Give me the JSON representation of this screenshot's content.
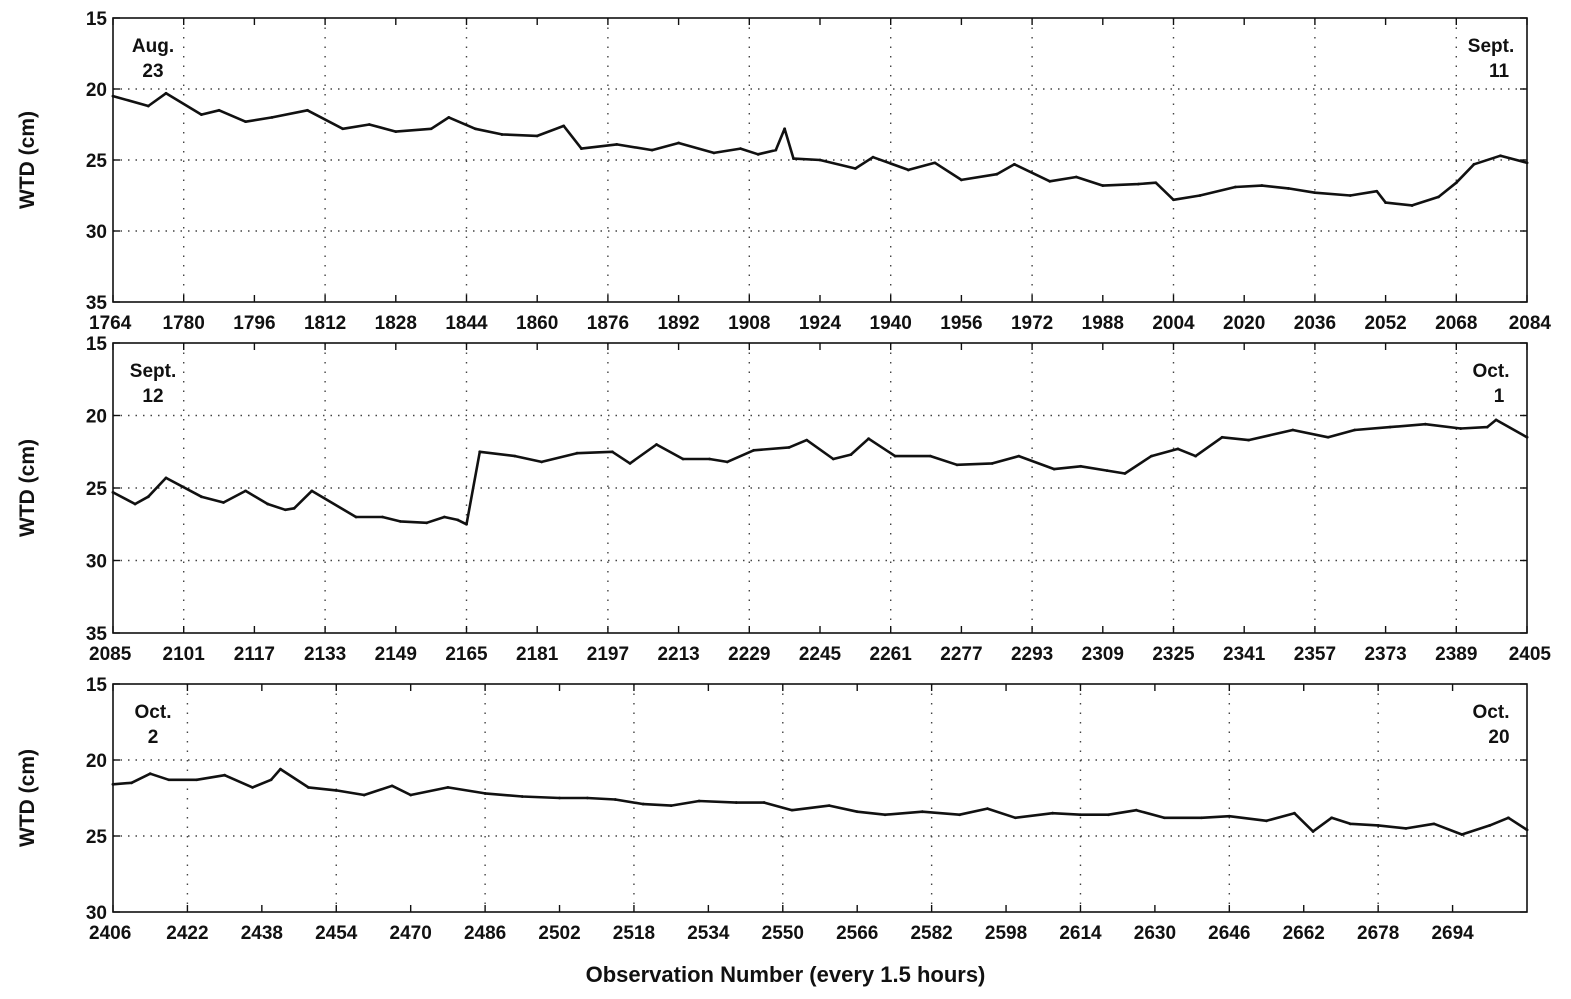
{
  "colors": {
    "line": "#111111",
    "grid": "#444444",
    "background": "#ffffff"
  },
  "figure": {
    "xlabel": "Observation Number (every 1.5 hours)"
  },
  "chart_data": [
    {
      "type": "line",
      "ylabel": "WTD (cm)",
      "y_inverted": true,
      "ylim": [
        15,
        35
      ],
      "yticks": [
        15,
        20,
        25,
        30,
        35
      ],
      "xlim": [
        1764,
        2084
      ],
      "xticks": [
        1764,
        1780,
        1796,
        1812,
        1828,
        1844,
        1860,
        1876,
        1892,
        1908,
        1924,
        1940,
        1956,
        1972,
        1988,
        2004,
        2020,
        2036,
        2052,
        2068,
        2084
      ],
      "grid": "dotted",
      "annotations": [
        {
          "lines": [
            "Aug.",
            "23"
          ],
          "position": "top-left"
        },
        {
          "lines": [
            "Sept.",
            "11"
          ],
          "position": "top-right"
        }
      ],
      "series": [
        {
          "x": [
            1764,
            1772,
            1776,
            1784,
            1788,
            1794,
            1800,
            1808,
            1816,
            1822,
            1828,
            1836,
            1840,
            1846,
            1852,
            1860,
            1866,
            1870,
            1878,
            1886,
            1892,
            1900,
            1906,
            1910,
            1914,
            1916,
            1918,
            1924,
            1932,
            1936,
            1944,
            1950,
            1956,
            1964,
            1968,
            1976,
            1982,
            1988,
            1996,
            2000,
            2004,
            2010,
            2018,
            2024,
            2030,
            2036,
            2044,
            2050,
            2052,
            2058,
            2064,
            2068,
            2072,
            2078,
            2084
          ],
          "y": [
            20.5,
            21.2,
            20.3,
            21.8,
            21.5,
            22.3,
            22.0,
            21.5,
            22.8,
            22.5,
            23.0,
            22.8,
            22.0,
            22.8,
            23.2,
            23.3,
            22.6,
            24.2,
            23.9,
            24.3,
            23.8,
            24.5,
            24.2,
            24.6,
            24.3,
            22.8,
            24.9,
            25.0,
            25.6,
            24.8,
            25.7,
            25.2,
            26.4,
            26.0,
            25.3,
            26.5,
            26.2,
            26.8,
            26.7,
            26.6,
            27.8,
            27.5,
            26.9,
            26.8,
            27.0,
            27.3,
            27.5,
            27.2,
            28.0,
            28.2,
            27.6,
            26.6,
            25.3,
            24.7,
            25.2
          ]
        }
      ]
    },
    {
      "type": "line",
      "ylabel": "WTD (cm)",
      "y_inverted": true,
      "ylim": [
        15,
        35
      ],
      "yticks": [
        15,
        20,
        25,
        30,
        35
      ],
      "xlim": [
        2085,
        2405
      ],
      "xticks": [
        2085,
        2101,
        2117,
        2133,
        2149,
        2165,
        2181,
        2197,
        2213,
        2229,
        2245,
        2261,
        2277,
        2293,
        2309,
        2325,
        2341,
        2357,
        2373,
        2389,
        2405
      ],
      "grid": "dotted",
      "annotations": [
        {
          "lines": [
            "Sept.",
            "12"
          ],
          "position": "top-left"
        },
        {
          "lines": [
            "Oct.",
            "1"
          ],
          "position": "top-right"
        }
      ],
      "series": [
        {
          "x": [
            2085,
            2090,
            2093,
            2097,
            2105,
            2110,
            2115,
            2120,
            2124,
            2126,
            2130,
            2140,
            2146,
            2150,
            2156,
            2160,
            2163,
            2165,
            2168,
            2176,
            2182,
            2190,
            2198,
            2202,
            2208,
            2214,
            2220,
            2224,
            2230,
            2238,
            2242,
            2248,
            2252,
            2256,
            2262,
            2270,
            2276,
            2284,
            2290,
            2298,
            2304,
            2310,
            2314,
            2320,
            2326,
            2330,
            2336,
            2342,
            2352,
            2360,
            2366,
            2374,
            2382,
            2390,
            2396,
            2398,
            2405
          ],
          "y": [
            25.3,
            26.1,
            25.6,
            24.3,
            25.6,
            26.0,
            25.2,
            26.1,
            26.5,
            26.4,
            25.2,
            27.0,
            27.0,
            27.3,
            27.4,
            27.0,
            27.2,
            27.5,
            22.5,
            22.8,
            23.2,
            22.6,
            22.5,
            23.3,
            22.0,
            23.0,
            23.0,
            23.2,
            22.4,
            22.2,
            21.7,
            23.0,
            22.7,
            21.6,
            22.8,
            22.8,
            23.4,
            23.3,
            22.8,
            23.7,
            23.5,
            23.8,
            24.0,
            22.8,
            22.3,
            22.8,
            21.5,
            21.7,
            21.0,
            21.5,
            21.0,
            20.8,
            20.6,
            20.9,
            20.8,
            20.3,
            21.5
          ]
        }
      ]
    },
    {
      "type": "line",
      "ylabel": "WTD (cm)",
      "y_inverted": true,
      "ylim": [
        15,
        30
      ],
      "yticks": [
        15,
        20,
        25,
        30
      ],
      "xlim": [
        2406,
        2710
      ],
      "xticks": [
        2406,
        2422,
        2438,
        2454,
        2470,
        2486,
        2502,
        2518,
        2534,
        2550,
        2566,
        2582,
        2598,
        2614,
        2630,
        2646,
        2662,
        2678,
        2694
      ],
      "grid": "dotted",
      "annotations": [
        {
          "lines": [
            "Oct.",
            "2"
          ],
          "position": "top-left"
        },
        {
          "lines": [
            "Oct.",
            "20"
          ],
          "position": "top-right"
        }
      ],
      "series": [
        {
          "x": [
            2406,
            2410,
            2414,
            2418,
            2424,
            2430,
            2436,
            2440,
            2442,
            2448,
            2454,
            2460,
            2466,
            2470,
            2478,
            2486,
            2494,
            2502,
            2508,
            2514,
            2520,
            2526,
            2532,
            2540,
            2546,
            2552,
            2560,
            2566,
            2572,
            2580,
            2588,
            2594,
            2600,
            2608,
            2614,
            2620,
            2626,
            2632,
            2640,
            2646,
            2654,
            2660,
            2664,
            2668,
            2672,
            2678,
            2684,
            2690,
            2696,
            2702,
            2706,
            2710
          ],
          "y": [
            21.6,
            21.5,
            20.9,
            21.3,
            21.3,
            21.0,
            21.8,
            21.3,
            20.6,
            21.8,
            22.0,
            22.3,
            21.7,
            22.3,
            21.8,
            22.2,
            22.4,
            22.5,
            22.5,
            22.6,
            22.9,
            23.0,
            22.7,
            22.8,
            22.8,
            23.3,
            23.0,
            23.4,
            23.6,
            23.4,
            23.6,
            23.2,
            23.8,
            23.5,
            23.6,
            23.6,
            23.3,
            23.8,
            23.8,
            23.7,
            24.0,
            23.5,
            24.7,
            23.8,
            24.2,
            24.3,
            24.5,
            24.2,
            24.9,
            24.3,
            23.8,
            24.6
          ]
        }
      ]
    }
  ]
}
